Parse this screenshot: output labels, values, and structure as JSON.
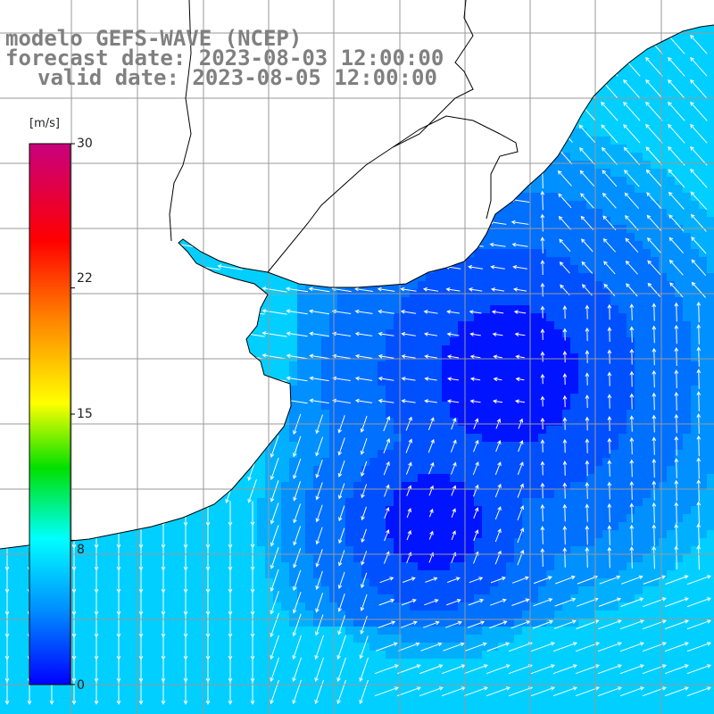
{
  "title": {
    "model": "modelo GEFS-WAVE (NCEP)",
    "forecast": "forecast date: 2023-08-03 12:00:00",
    "valid": "valid date: 2023-08-05 12:00:00"
  },
  "colorbar": {
    "unit": "[m/s]",
    "min": 0,
    "max": 30,
    "ticks": [
      "30",
      "22",
      "15",
      "8",
      "0"
    ],
    "tick_values": [
      30,
      22,
      15,
      8,
      0
    ],
    "colors": [
      "#0000ff",
      "#0090ff",
      "#00ffff",
      "#00ff00",
      "#ffff00",
      "#ff8000",
      "#ff0000",
      "#c8007f"
    ]
  },
  "field": {
    "variable": "wind speed with direction arrows",
    "colors": {
      "calm": "#0014ff",
      "low": "#0050ff",
      "mid": "#0090ff",
      "high": "#00cfff",
      "land": "#ffffff",
      "grid": "#9a9a9a",
      "coast": "#000000",
      "arrow": "#ffffff"
    }
  }
}
